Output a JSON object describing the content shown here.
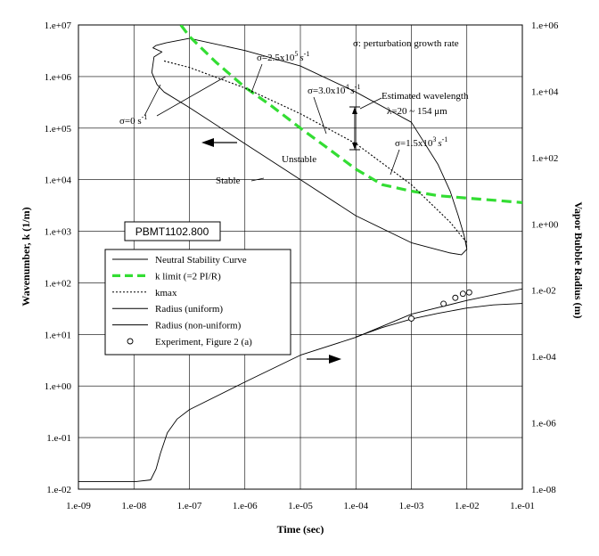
{
  "chart_data": {
    "type": "line",
    "title": "",
    "xlabel": "Time (sec)",
    "ylabel_left": "Wavenumber, k (1/m)",
    "ylabel_right": "Vapor Bubble Radius (m)",
    "x_scale": "log",
    "y_left_scale": "log",
    "y_right_scale": "log",
    "xlim": [
      1e-09,
      0.1
    ],
    "ylim_left": [
      0.01,
      10000000.0
    ],
    "ylim_right": [
      1e-08,
      1000000.0
    ],
    "grid": true,
    "x_ticks": [
      "1.e-09",
      "1.e-08",
      "1.e-07",
      "1.e-06",
      "1.e-05",
      "1.e-04",
      "1.e-03",
      "1.e-02",
      "1.e-01"
    ],
    "y_left_ticks": [
      "1.e-02",
      "1.e-01",
      "1.e+00",
      "1.e+01",
      "1.e+02",
      "1.e+03",
      "1.e+04",
      "1.e+05",
      "1.e+06",
      "1.e+07"
    ],
    "y_right_ticks": [
      "1.e-08",
      "1.e-06",
      "1.e-04",
      "1.e-02",
      "1.e+00",
      "1.e+02",
      "1.e+04",
      "1.e+06"
    ],
    "legend": {
      "placement": "center-left",
      "entries": [
        {
          "label": "Neutral Stability Curve",
          "style": "solid",
          "color": "#000000"
        },
        {
          "label": "k limit (=2 PI/R)",
          "style": "dashed",
          "color": "#33dd33"
        },
        {
          "label": "kmax",
          "style": "dotted",
          "color": "#000000"
        },
        {
          "label": "Radius (uniform)",
          "style": "solid",
          "color": "#000000"
        },
        {
          "label": "Radius (non-uniform)",
          "style": "solid",
          "color": "#000000"
        },
        {
          "label": "Experiment, Figure 2 (a)",
          "style": "circle",
          "color": "#000000"
        }
      ]
    },
    "annotations": {
      "box_label": "PBMT1102.800",
      "sigma_def": "σ: perturbation growth rate",
      "sigma_2_5e5_base": "σ=2.5x10",
      "sigma_2_5e5_exp": "5",
      "sigma_3e4_base": "σ=3.0x10",
      "sigma_3e4_exp": "4",
      "sigma_1_5e3_base": "σ=1.5x10",
      "sigma_1_5e3_exp": "3",
      "sigma_unit": "s",
      "sigma_unit_exp": "-1",
      "sigma_zero": "σ=0 s",
      "est_wavelength": "Estimated wavelength",
      "lambda_range": "λ=20 ~ 154 μm",
      "unstable": "Unstable",
      "stable": "Stable"
    },
    "series": [
      {
        "name": "Neutral Stability Curve",
        "axis": "left",
        "x": [
          3.2e-08,
          2.3e-08,
          2.1e-08,
          2.6e-08,
          3.5e-08,
          1e-07,
          1e-06,
          1e-05,
          0.0001,
          0.001,
          0.005,
          0.008,
          0.01,
          0.009,
          0.007,
          0.005,
          0.003,
          0.001,
          0.0001,
          1e-05,
          1e-06,
          1e-07,
          3.8e-08,
          2.5e-08,
          2.2e-08
        ],
        "y": [
          3000000.0,
          2400000.0,
          1200000.0,
          700000.0,
          500000.0,
          250000.0,
          50000.0,
          10000.0,
          2000.0,
          600.0,
          380.0,
          350.0,
          450.0,
          800.0,
          2000.0,
          6000.0,
          20000.0,
          130000.0,
          500000.0,
          1600000.0,
          3200000.0,
          5500000.0,
          4500000.0,
          4000000.0,
          3600000.0
        ]
      },
      {
        "name": "k limit (=2 PI/R)",
        "axis": "left",
        "x": [
          7e-08,
          1e-07,
          3e-07,
          1e-06,
          3e-06,
          1e-05,
          3e-05,
          0.0001,
          0.0003,
          0.001,
          0.003,
          0.01,
          0.03,
          0.1
        ],
        "y": [
          10000000.0,
          6000000.0,
          1900000.0,
          620000.0,
          270000.0,
          100000.0,
          42000.0,
          16000.0,
          8000.0,
          6000.0,
          4900.0,
          4400.0,
          4000.0,
          3600.0
        ]
      },
      {
        "name": "kmax",
        "axis": "left",
        "x": [
          3.5e-08,
          1e-07,
          1e-06,
          1e-05,
          0.0001,
          0.001,
          0.005,
          0.01
        ],
        "y": [
          2000000.0,
          1500000.0,
          600000.0,
          190000.0,
          50000.0,
          8000.0,
          1500.0,
          600.0
        ]
      },
      {
        "name": "Radius (uniform)",
        "axis": "right",
        "x": [
          1e-09,
          1.1e-08,
          2e-08,
          2.5e-08,
          3e-08,
          4e-08,
          6e-08,
          1e-07,
          1e-06,
          1e-05,
          0.0001,
          0.001,
          0.01,
          0.1
        ],
        "y": [
          1.7e-08,
          1.7e-08,
          1.9e-08,
          4e-08,
          1.2e-07,
          5e-07,
          1.3e-06,
          2.5e-06,
          1.7e-05,
          0.00011,
          0.00038,
          0.0019,
          0.0049,
          0.011
        ]
      },
      {
        "name": "Radius (non-uniform)",
        "axis": "right",
        "x": [
          0.0001,
          0.0003,
          0.001,
          0.003,
          0.01,
          0.03,
          0.1
        ],
        "y": [
          0.00039,
          0.00075,
          0.00135,
          0.002,
          0.0029,
          0.0036,
          0.004
        ]
      },
      {
        "name": "Experiment, Figure 2 (a)",
        "axis": "right",
        "x": [
          0.001,
          0.0038,
          0.0062,
          0.0085,
          0.011
        ],
        "y": [
          0.0014,
          0.0039,
          0.0059,
          0.0078,
          0.0086
        ]
      }
    ]
  }
}
